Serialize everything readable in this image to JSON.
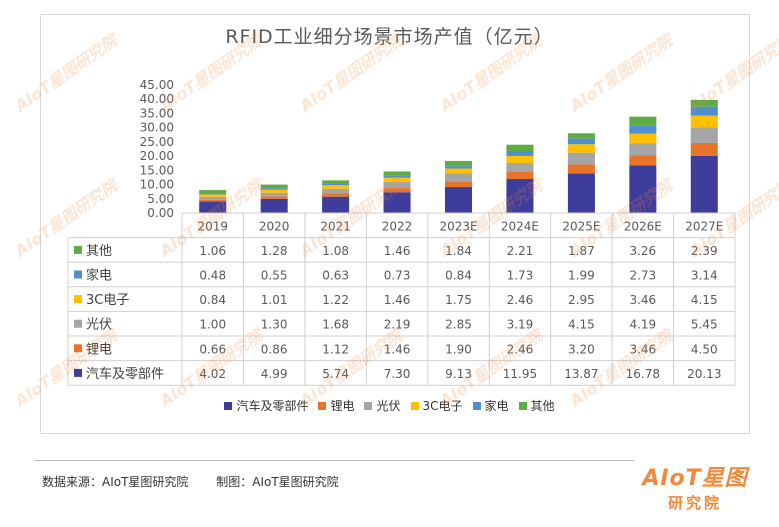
{
  "chart_data": {
    "type": "bar",
    "stacked": true,
    "title": "RFID工业细分场景市场产值（亿元）",
    "categories": [
      "2019",
      "2020",
      "2021",
      "2022",
      "2023E",
      "2024E",
      "2025E",
      "2026E",
      "2027E"
    ],
    "ylim": [
      0,
      45
    ],
    "yticks": [
      "0.00",
      "5.00",
      "10.00",
      "15.00",
      "20.00",
      "25.00",
      "30.00",
      "35.00",
      "40.00",
      "45.00"
    ],
    "legend_position": "bottom",
    "series": [
      {
        "name": "汽车及零部件",
        "color": "#3f3d9b",
        "values": [
          "4.02",
          "4.99",
          "5.74",
          "7.30",
          "9.13",
          "11.95",
          "13.87",
          "16.78",
          "20.13"
        ]
      },
      {
        "name": "锂电",
        "color": "#e8742a",
        "values": [
          "0.66",
          "0.86",
          "1.12",
          "1.46",
          "1.90",
          "2.46",
          "3.20",
          "3.46",
          "4.50"
        ]
      },
      {
        "name": "光伏",
        "color": "#a5a5a5",
        "values": [
          "1.00",
          "1.30",
          "1.68",
          "2.19",
          "2.85",
          "3.19",
          "4.15",
          "4.19",
          "5.45"
        ]
      },
      {
        "name": "3C电子",
        "color": "#ffc000",
        "values": [
          "0.84",
          "1.01",
          "1.22",
          "1.46",
          "1.75",
          "2.46",
          "2.95",
          "3.46",
          "4.15"
        ]
      },
      {
        "name": "家电",
        "color": "#4f8fd1",
        "values": [
          "0.48",
          "0.55",
          "0.63",
          "0.73",
          "0.84",
          "1.73",
          "1.99",
          "2.73",
          "3.14"
        ]
      },
      {
        "name": "其他",
        "color": "#5fac45",
        "values": [
          "1.06",
          "1.28",
          "1.08",
          "1.46",
          "1.84",
          "2.21",
          "1.87",
          "3.26",
          "2.39"
        ]
      }
    ]
  },
  "footer": {
    "source": "数据来源：AIoT星图研究院",
    "maker": "制图：AIoT星图研究院"
  },
  "brand": {
    "logo": "AIoT星图",
    "sub": "研究院",
    "watermark": "AIoT星图研究院"
  }
}
